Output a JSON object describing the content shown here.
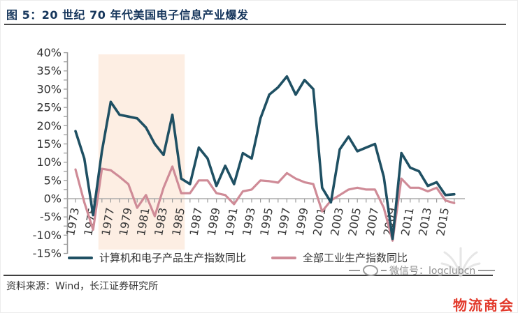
{
  "header": {
    "title": "图 5：20 世纪 70 年代美国电子信息产业爆发"
  },
  "chart_data": {
    "type": "line",
    "title": "20 世纪 70 年代美国电子信息产业爆发",
    "years": [
      1973,
      1974,
      1975,
      1976,
      1977,
      1978,
      1979,
      1980,
      1981,
      1982,
      1983,
      1984,
      1985,
      1986,
      1987,
      1988,
      1989,
      1990,
      1991,
      1992,
      1993,
      1994,
      1995,
      1996,
      1997,
      1998,
      1999,
      2000,
      2001,
      2002,
      2003,
      2004,
      2005,
      2006,
      2007,
      2008,
      2009,
      2010,
      2011,
      2012,
      2013,
      2014,
      2015,
      2016
    ],
    "series": [
      {
        "name": "计算机和电子产品生产指数同比",
        "color": "#1f5063",
        "values": [
          18.5,
          11,
          -4.5,
          13,
          26.5,
          23,
          22.5,
          22,
          19.5,
          15,
          12,
          23,
          5.5,
          4,
          14,
          11,
          3.5,
          9,
          4,
          12.5,
          11,
          22,
          28.5,
          30.5,
          33.5,
          28.5,
          32.5,
          30,
          3,
          -1,
          13.5,
          17,
          13,
          14,
          15,
          6,
          -11,
          12.5,
          8.5,
          7.5,
          3.5,
          4.5,
          1,
          1.2
        ]
      },
      {
        "name": "全部工业生产指数同比",
        "color": "#cf8b97",
        "values": [
          8,
          -1,
          -8.5,
          8.2,
          7.8,
          6,
          4,
          -2.5,
          1,
          -4.8,
          3,
          8.8,
          1.5,
          1.5,
          5,
          5,
          1.5,
          1,
          -1.5,
          2,
          2.5,
          5,
          4.8,
          4.4,
          7,
          5.5,
          4.5,
          4,
          -3.5,
          -0.5,
          1,
          2.5,
          3,
          2.5,
          2.5,
          -2.5,
          -11.5,
          5.5,
          3,
          3,
          2,
          3,
          -0.5,
          -1.2
        ]
      }
    ],
    "x_tick_years": [
      1973,
      1975,
      1977,
      1979,
      1981,
      1983,
      1985,
      1987,
      1989,
      1991,
      1993,
      1995,
      1997,
      1999,
      2001,
      2003,
      2005,
      2007,
      2009,
      2011,
      2013,
      2015
    ],
    "y_ticks": [
      40,
      35,
      30,
      25,
      20,
      15,
      10,
      5,
      0,
      -5,
      -10,
      -15
    ],
    "y_tick_suffix": "%",
    "ylim": [
      -15,
      40
    ],
    "xlim": [
      1972.5,
      2017
    ],
    "grid": false,
    "legend_position": "bottom",
    "highlight_band": {
      "from_year": 1975.6,
      "to_year": 1985.4,
      "color": "#fdeee3"
    }
  },
  "footer": {
    "source": "资料来源：Wind，长江证券研究所",
    "wechat_watermark": "微信号：logclubcn",
    "stamp": "物流商会"
  },
  "colors": {
    "title": "#16365c",
    "axis": "#9b9b9b",
    "zero_line": "#ababab",
    "tick_label": "#3a3a3a",
    "stamp_red": "#e23a2c",
    "watermark_gray": "#8f8f8f"
  }
}
